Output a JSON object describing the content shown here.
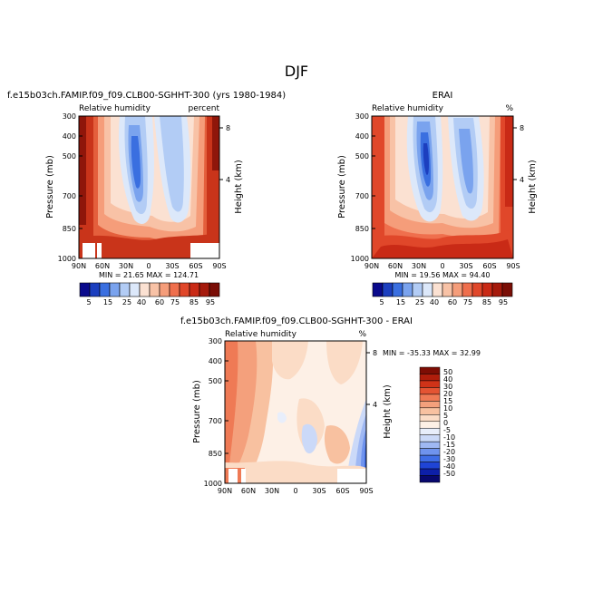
{
  "season": "DJF",
  "colors": {
    "rh_scale": [
      "#0a0a8c",
      "#1c3fbf",
      "#3a6fe0",
      "#7aa3ee",
      "#b2ccf5",
      "#dce8fa",
      "#fbe1d2",
      "#f8c2a6",
      "#f59d7a",
      "#ef6f4d",
      "#e0472a",
      "#c92a16",
      "#a51a0c",
      "#7a0e06"
    ],
    "diff_scale": [
      "#08086e",
      "#0d1fa8",
      "#1f44d6",
      "#3f6de6",
      "#6f93ee",
      "#9fb8f3",
      "#cbd9f8",
      "#e8eefb",
      "#fdf0e6",
      "#fbdcc6",
      "#f8c1a0",
      "#f4a07c",
      "#ef7a55",
      "#e45433",
      "#cf3318",
      "#b01d0b",
      "#7e0d04"
    ]
  },
  "panels": [
    {
      "id": "model",
      "title": "f.e15b03ch.FAMIP.f09_f09.CLB00-SGHHT-300 (yrs 1980-1984)",
      "left_label": "Relative humidity",
      "right_label": "percent",
      "ylabel": "Pressure (mb)",
      "y2label": "Height (km)",
      "y_ticks": [
        "300",
        "400",
        "500",
        "700",
        "850",
        "1000"
      ],
      "y2_ticks": [
        "8",
        "4"
      ],
      "x_ticks": [
        "90N",
        "60N",
        "30N",
        "0",
        "30S",
        "60S",
        "90S"
      ],
      "stats": "MIN =  21.65   MAX = 124.71",
      "colorbar_labels": [
        "5",
        "15",
        "25",
        "40",
        "60",
        "75",
        "85",
        "95"
      ]
    },
    {
      "id": "obs",
      "title": "ERAI",
      "left_label": "Relative humidity",
      "right_label": "%",
      "ylabel": "Pressure (mb)",
      "y2label": "Height (km)",
      "y_ticks": [
        "300",
        "400",
        "500",
        "700",
        "850",
        "1000"
      ],
      "y2_ticks": [
        "8",
        "4"
      ],
      "x_ticks": [
        "90N",
        "60N",
        "30N",
        "0",
        "30S",
        "60S",
        "90S"
      ],
      "stats": "MIN =  19.56   MAX =  94.40",
      "colorbar_labels": [
        "5",
        "15",
        "25",
        "40",
        "60",
        "75",
        "85",
        "95"
      ]
    },
    {
      "id": "diff",
      "title": "f.e15b03ch.FAMIP.f09_f09.CLB00-SGHHT-300 - ERAI",
      "left_label": "Relative humidity",
      "right_label": "%",
      "ylabel": "Pressure (mb)",
      "y2label": "Height (km)",
      "y_ticks": [
        "300",
        "400",
        "500",
        "700",
        "850",
        "1000"
      ],
      "y2_ticks": [
        "8",
        "4"
      ],
      "x_ticks": [
        "90N",
        "60N",
        "30N",
        "0",
        "30S",
        "60S",
        "90S"
      ],
      "stats": "MIN = -35.33   MAX =  32.99",
      "colorbar_labels": [
        "50",
        "40",
        "30",
        "20",
        "15",
        "10",
        "5",
        "0",
        "-5",
        "-10",
        "-15",
        "-20",
        "-30",
        "-40",
        "-50"
      ]
    }
  ],
  "chart_data": [
    {
      "type": "heatmap",
      "title": "f.e15b03ch.FAMIP.f09_f09.CLB00-SGHHT-300 (yrs 1980-1984)",
      "variable": "Relative humidity",
      "units": "percent",
      "xlabel": "",
      "ylabel": "Pressure (mb)",
      "y2label": "Height (km)",
      "x_categories": [
        "90N",
        "60N",
        "30N",
        "0",
        "30S",
        "60S",
        "90S"
      ],
      "y_levels": [
        300,
        400,
        500,
        700,
        850,
        1000
      ],
      "ylim": [
        1000,
        300
      ],
      "contour_levels": [
        5,
        15,
        25,
        40,
        60,
        75,
        85,
        95
      ],
      "min": 21.65,
      "max": 124.71
    },
    {
      "type": "heatmap",
      "title": "ERAI",
      "variable": "Relative humidity",
      "units": "%",
      "xlabel": "",
      "ylabel": "Pressure (mb)",
      "y2label": "Height (km)",
      "x_categories": [
        "90N",
        "60N",
        "30N",
        "0",
        "30S",
        "60S",
        "90S"
      ],
      "y_levels": [
        300,
        400,
        500,
        700,
        850,
        1000
      ],
      "ylim": [
        1000,
        300
      ],
      "contour_levels": [
        5,
        15,
        25,
        40,
        60,
        75,
        85,
        95
      ],
      "min": 19.56,
      "max": 94.4
    },
    {
      "type": "heatmap",
      "title": "f.e15b03ch.FAMIP.f09_f09.CLB00-SGHHT-300 - ERAI",
      "variable": "Relative humidity",
      "units": "%",
      "xlabel": "",
      "ylabel": "Pressure (mb)",
      "y2label": "Height (km)",
      "x_categories": [
        "90N",
        "60N",
        "30N",
        "0",
        "30S",
        "60S",
        "90S"
      ],
      "y_levels": [
        300,
        400,
        500,
        700,
        850,
        1000
      ],
      "ylim": [
        1000,
        300
      ],
      "contour_levels": [
        -50,
        -40,
        -30,
        -20,
        -15,
        -10,
        -5,
        0,
        5,
        10,
        15,
        20,
        30,
        40,
        50
      ],
      "min": -35.33,
      "max": 32.99
    }
  ]
}
